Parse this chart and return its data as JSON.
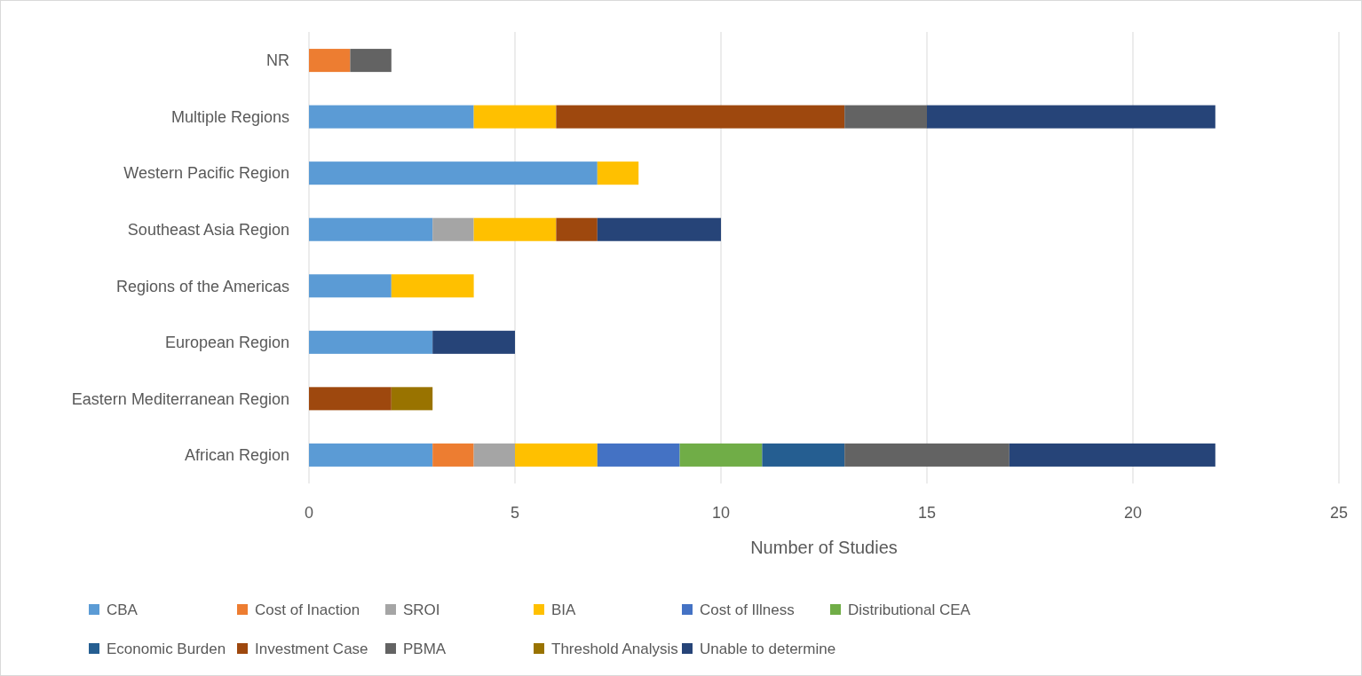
{
  "chart_data": {
    "type": "bar",
    "orientation": "horizontal",
    "stacked": true,
    "xlabel": "Number of Studies",
    "categories": [
      "NR",
      "Multiple Regions",
      "Western Pacific Region",
      "Southeast Asia Region",
      "Regions of the Americas",
      "European Region",
      "Eastern Mediterranean Region",
      "African Region"
    ],
    "series": [
      {
        "name": "CBA",
        "color": "#5b9bd5",
        "values": [
          null,
          4,
          7,
          3,
          2,
          3,
          null,
          3
        ]
      },
      {
        "name": "Cost of Inaction",
        "color": "#ed7d31",
        "values": [
          1,
          null,
          null,
          null,
          null,
          null,
          null,
          1
        ]
      },
      {
        "name": "SROI",
        "color": "#a5a5a5",
        "values": [
          null,
          null,
          null,
          1,
          null,
          null,
          null,
          1
        ]
      },
      {
        "name": "BIA",
        "color": "#ffc000",
        "values": [
          null,
          2,
          1,
          2,
          2,
          null,
          null,
          2
        ]
      },
      {
        "name": "Cost of Illness",
        "color": "#4472c4",
        "values": [
          null,
          null,
          null,
          null,
          null,
          null,
          null,
          2
        ]
      },
      {
        "name": "Distributional CEA",
        "color": "#70ad47",
        "values": [
          null,
          null,
          null,
          null,
          null,
          null,
          null,
          2
        ]
      },
      {
        "name": "Economic Burden",
        "color": "#255e91",
        "values": [
          null,
          null,
          null,
          null,
          null,
          null,
          null,
          2
        ]
      },
      {
        "name": "Investment Case",
        "color": "#9e480e",
        "values": [
          null,
          7,
          null,
          1,
          null,
          null,
          2,
          null
        ]
      },
      {
        "name": "PBMA",
        "color": "#636363",
        "values": [
          1,
          2,
          null,
          null,
          null,
          null,
          null,
          4
        ]
      },
      {
        "name": "Threshold Analysis",
        "color": "#997300",
        "values": [
          null,
          null,
          null,
          null,
          null,
          null,
          1,
          null
        ]
      },
      {
        "name": "Unable to determine",
        "color": "#264478",
        "values": [
          null,
          7,
          null,
          3,
          null,
          2,
          null,
          5
        ]
      }
    ],
    "xlim": [
      0,
      25
    ],
    "xticks": [
      0,
      5,
      10,
      15,
      20,
      25
    ],
    "grid": "x",
    "legend": "bottom"
  }
}
